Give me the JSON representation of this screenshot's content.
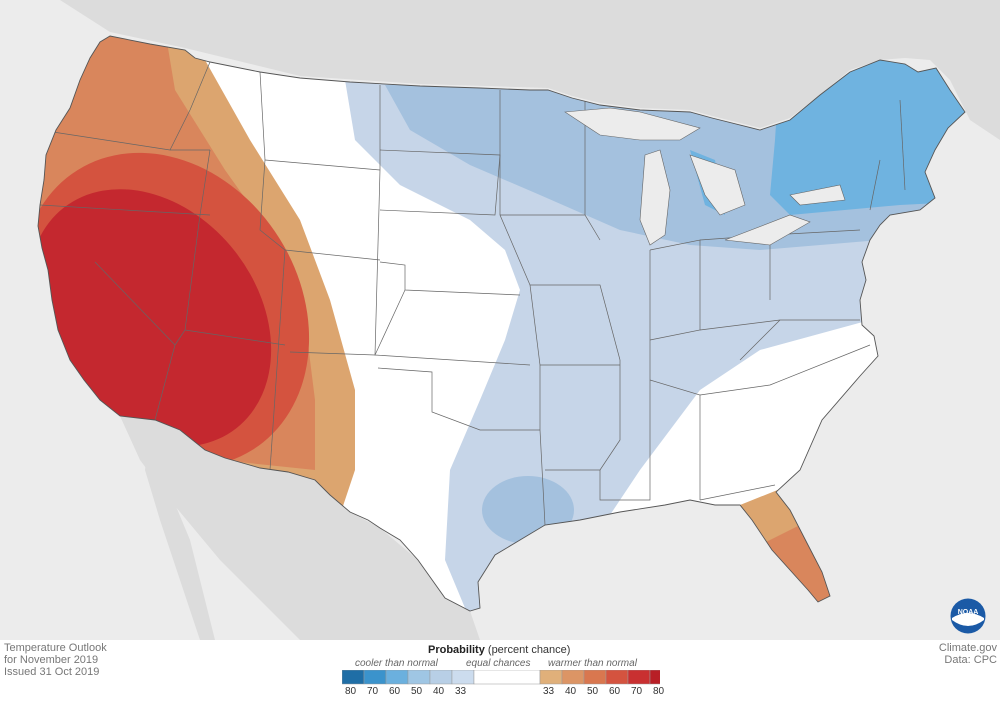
{
  "map": {
    "region": "Contiguous United States",
    "outlook_category_colors": {
      "above_33_40": "#dca56f",
      "above_40_50": "#d9865c",
      "above_50_60": "#d4533f",
      "above_60_70": "#c4282f",
      "near_equal_chances": "#ffffff",
      "below_33_40": "#c6d5e8",
      "below_40_50": "#a4c1de",
      "below_50_60": "#6fb3e0"
    },
    "background_land": "#dddddd",
    "background_water": "#ececec"
  },
  "footer": {
    "title_line1": "Temperature Outlook",
    "title_line2": "for November 2019",
    "title_line3": "Issued 31 Oct 2019",
    "source_line1": "Climate.gov",
    "source_line2": "Data: CPC"
  },
  "legend": {
    "title_bold": "Probability",
    "title_rest": "(percent chance)",
    "cooler_label": "cooler than normal",
    "equal_label": "equal chances",
    "warmer_label": "warmer than normal",
    "cool_ticks": [
      "80",
      "70",
      "60",
      "50",
      "40",
      "33"
    ],
    "warm_ticks": [
      "33",
      "40",
      "50",
      "60",
      "70",
      "80"
    ],
    "cool_colors": [
      "#1f6ea6",
      "#3b93cc",
      "#6bb0de",
      "#9fc6e4",
      "#b8cfe6",
      "#ccdcee"
    ],
    "equal_color": "#ffffff",
    "warm_colors": [
      "#e0b07a",
      "#dc9565",
      "#d9774f",
      "#d4533f",
      "#c93031",
      "#b81f26"
    ]
  },
  "logo": {
    "name": "noaa-logo"
  }
}
